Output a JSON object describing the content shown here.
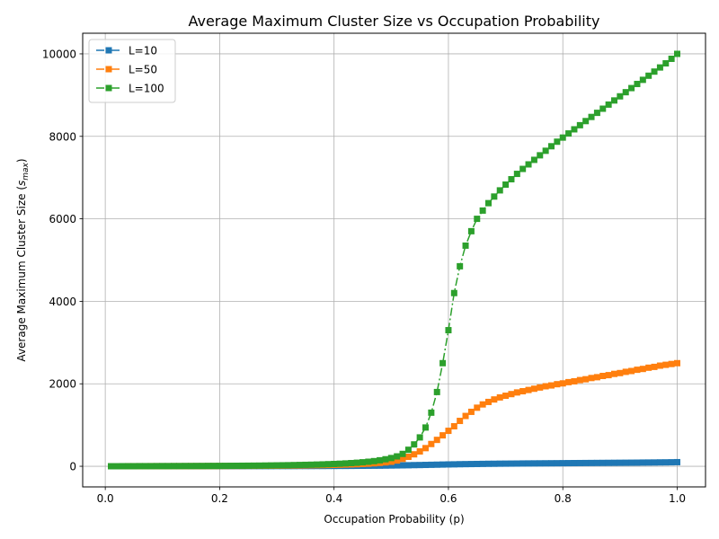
{
  "chart_data": {
    "type": "line",
    "title": "Average Maximum Cluster Size vs Occupation Probability",
    "xlabel": "Occupation Probability (p)",
    "ylabel_prefix": "Average Maximum Cluster Size (",
    "ylabel_symbol": "s",
    "ylabel_subscript": "max",
    "ylabel_suffix": ")",
    "xlim": [
      -0.0395,
      1.0495
    ],
    "ylim": [
      -500,
      10500
    ],
    "xticks": [
      0.0,
      0.2,
      0.4,
      0.6,
      0.8,
      1.0
    ],
    "xtick_labels": [
      "0.0",
      "0.2",
      "0.4",
      "0.6",
      "0.8",
      "1.0"
    ],
    "yticks": [
      0,
      2000,
      4000,
      6000,
      8000,
      10000
    ],
    "ytick_labels": [
      "0",
      "2000",
      "4000",
      "6000",
      "8000",
      "10000"
    ],
    "grid": true,
    "legend_position": "top-left",
    "x": [
      0.01,
      0.02,
      0.03,
      0.04,
      0.05,
      0.06,
      0.07,
      0.08,
      0.09,
      0.1,
      0.11,
      0.12,
      0.13,
      0.14,
      0.15,
      0.16,
      0.17,
      0.18,
      0.19,
      0.2,
      0.21,
      0.22,
      0.23,
      0.24,
      0.25,
      0.26,
      0.27,
      0.28,
      0.29,
      0.3,
      0.31,
      0.32,
      0.33,
      0.34,
      0.35,
      0.36,
      0.37,
      0.38,
      0.39,
      0.4,
      0.41,
      0.42,
      0.43,
      0.44,
      0.45,
      0.46,
      0.47,
      0.48,
      0.49,
      0.5,
      0.51,
      0.52,
      0.53,
      0.54,
      0.55,
      0.56,
      0.57,
      0.58,
      0.59,
      0.6,
      0.61,
      0.62,
      0.63,
      0.64,
      0.65,
      0.66,
      0.67,
      0.68,
      0.69,
      0.7,
      0.71,
      0.72,
      0.73,
      0.74,
      0.75,
      0.76,
      0.77,
      0.78,
      0.79,
      0.8,
      0.81,
      0.82,
      0.83,
      0.84,
      0.85,
      0.86,
      0.87,
      0.88,
      0.89,
      0.9,
      0.91,
      0.92,
      0.93,
      0.94,
      0.95,
      0.96,
      0.97,
      0.98,
      0.99,
      1.0
    ],
    "series": [
      {
        "name": "L=10",
        "color": "#1f77b4",
        "values": [
          1,
          1,
          1,
          1,
          1,
          1,
          1,
          1,
          1,
          2,
          2,
          2,
          2,
          2,
          2,
          2,
          2,
          3,
          3,
          3,
          3,
          3,
          3,
          3,
          4,
          4,
          4,
          4,
          4,
          5,
          5,
          5,
          5,
          6,
          6,
          6,
          7,
          7,
          8,
          8,
          9,
          9,
          10,
          11,
          12,
          13,
          14,
          15,
          17,
          19,
          21,
          23,
          25,
          28,
          30,
          33,
          36,
          39,
          42,
          45,
          47,
          50,
          52,
          54,
          56,
          58,
          60,
          61,
          63,
          64,
          65,
          66,
          68,
          69,
          70,
          71,
          72,
          73,
          74,
          75,
          76,
          77,
          78,
          79,
          80,
          81,
          82,
          83,
          84,
          85,
          86,
          87,
          88,
          90,
          91,
          92,
          94,
          95,
          97,
          100
        ]
      },
      {
        "name": "L=50",
        "color": "#ff7f0e",
        "values": [
          1,
          1,
          1,
          2,
          2,
          2,
          2,
          3,
          3,
          3,
          3,
          4,
          4,
          4,
          5,
          5,
          5,
          6,
          6,
          7,
          7,
          8,
          8,
          9,
          10,
          10,
          11,
          12,
          13,
          14,
          15,
          17,
          18,
          20,
          22,
          24,
          26,
          28,
          31,
          34,
          37,
          41,
          45,
          50,
          56,
          63,
          72,
          82,
          95,
          110,
          140,
          180,
          230,
          290,
          360,
          440,
          540,
          640,
          750,
          860,
          970,
          1100,
          1220,
          1320,
          1420,
          1500,
          1560,
          1620,
          1670,
          1710,
          1750,
          1790,
          1820,
          1850,
          1880,
          1910,
          1940,
          1960,
          1990,
          2010,
          2040,
          2060,
          2090,
          2110,
          2140,
          2160,
          2190,
          2210,
          2240,
          2260,
          2290,
          2310,
          2340,
          2360,
          2390,
          2410,
          2440,
          2460,
          2480,
          2500
        ]
      },
      {
        "name": "L=100",
        "color": "#2ca02c",
        "values": [
          1,
          1,
          2,
          2,
          2,
          3,
          3,
          3,
          4,
          4,
          4,
          5,
          5,
          6,
          6,
          7,
          7,
          8,
          8,
          9,
          10,
          11,
          12,
          13,
          14,
          15,
          16,
          18,
          20,
          22,
          24,
          26,
          29,
          32,
          35,
          38,
          42,
          46,
          51,
          56,
          62,
          69,
          77,
          86,
          97,
          110,
          125,
          145,
          170,
          200,
          240,
          300,
          400,
          530,
          700,
          940,
          1300,
          1800,
          2500,
          3300,
          4200,
          4850,
          5350,
          5700,
          6000,
          6200,
          6380,
          6540,
          6690,
          6830,
          6960,
          7090,
          7210,
          7320,
          7430,
          7540,
          7650,
          7760,
          7870,
          7970,
          8070,
          8170,
          8270,
          8370,
          8470,
          8570,
          8670,
          8770,
          8870,
          8970,
          9070,
          9170,
          9270,
          9370,
          9470,
          9570,
          9670,
          9770,
          9880,
          10000
        ]
      }
    ]
  }
}
